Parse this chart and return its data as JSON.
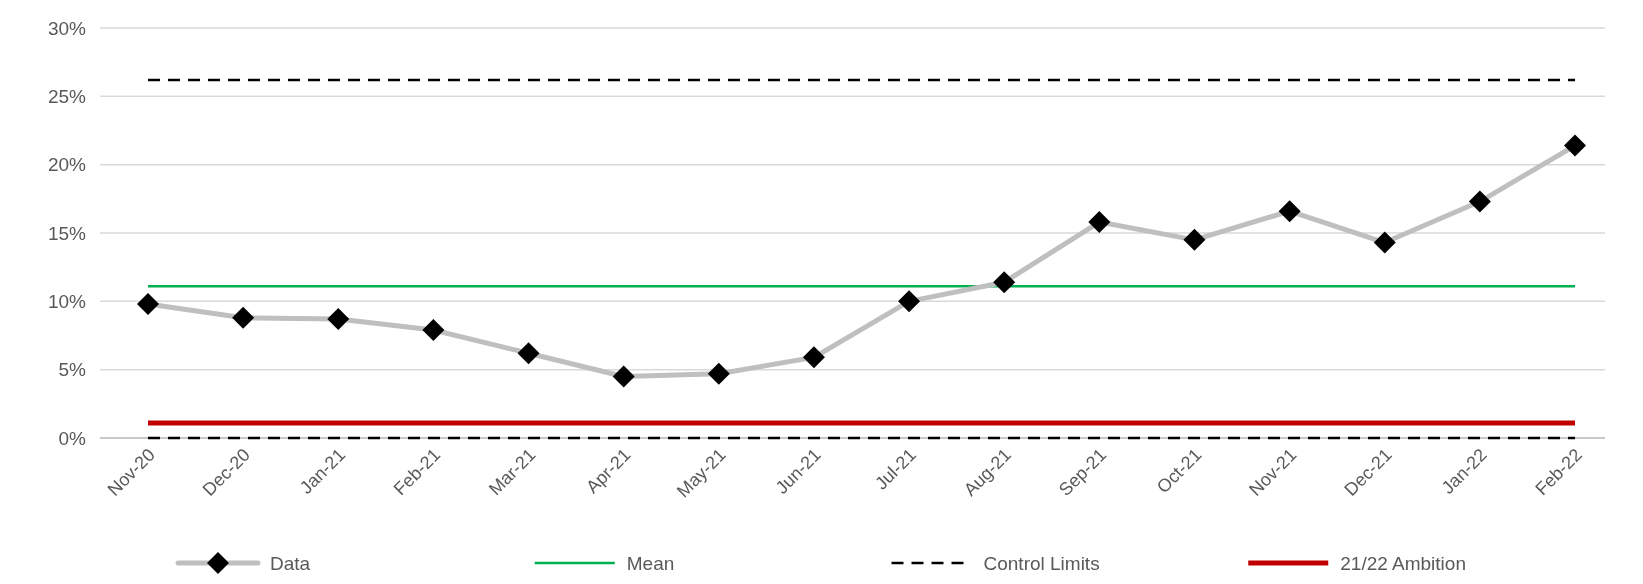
{
  "chart_data": {
    "type": "line",
    "categories": [
      "Nov-20",
      "Dec-20",
      "Jan-21",
      "Feb-21",
      "Mar-21",
      "Apr-21",
      "May-21",
      "Jun-21",
      "Jul-21",
      "Aug-21",
      "Sep-21",
      "Oct-21",
      "Nov-21",
      "Dec-21",
      "Jan-22",
      "Feb-22"
    ],
    "series": [
      {
        "name": "Data",
        "color": "#bfbfbf",
        "values": [
          9.8,
          8.8,
          8.7,
          7.9,
          6.2,
          4.5,
          4.7,
          5.9,
          10.0,
          11.4,
          15.8,
          14.5,
          16.6,
          14.3,
          17.3,
          21.4
        ]
      }
    ],
    "marker": "diamond",
    "ylim": [
      0,
      30
    ],
    "yticks": [
      {
        "value": 0,
        "label": "0%"
      },
      {
        "value": 5,
        "label": "5%"
      },
      {
        "value": 10,
        "label": "10%"
      },
      {
        "value": 15,
        "label": "15%"
      },
      {
        "value": 20,
        "label": "20%"
      },
      {
        "value": 25,
        "label": "25%"
      },
      {
        "value": 30,
        "label": "30%"
      }
    ],
    "grid": "y",
    "legend": "bottom",
    "ref_lines": [
      {
        "axis": "y",
        "value": 11.1,
        "label": "Mean",
        "color": "#00b050",
        "line_style": "solid"
      },
      {
        "axis": "y",
        "value": 26.2,
        "label": "Control Limits",
        "color": "#000000",
        "line_style": "dashed"
      },
      {
        "axis": "y",
        "value": 0,
        "color": "#000000",
        "line_style": "dashed"
      },
      {
        "axis": "y",
        "value": 1.1,
        "label": "21/22 Ambition",
        "color": "#c00000",
        "line_style": "solid"
      }
    ]
  }
}
